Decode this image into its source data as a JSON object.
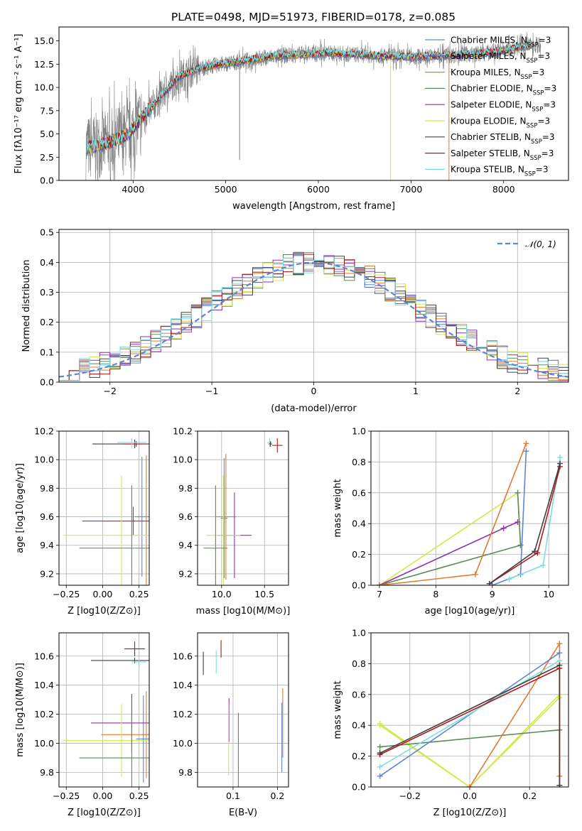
{
  "figure": {
    "title": "PLATE=0498, MJD=51973, FIBERID=0178, z=0.085"
  },
  "colors": {
    "Chabrier MILES": "#5d86d6",
    "Salpeter MILES": "#4f6fc4",
    "Kroupa MILES": "#e07b34",
    "Chabrier ELODIE": "#5a8a5a",
    "Salpeter ELODIE": "#8e30b0",
    "Kroupa ELODIE": "#d4e84a",
    "Chabrier STELIB": "#404040",
    "Salpeter STELIB": "#b01818",
    "Kroupa STELIB": "#7fdde0",
    "data": "#808080"
  },
  "chart_data": [
    {
      "id": "spectrum",
      "type": "line",
      "title": "PLATE=0498, MJD=51973, FIBERID=0178, z=0.085",
      "xlabel": "wavelength [Angstrom, rest frame]",
      "ylabel": "Flux [fλ10⁻¹⁷ erg cm⁻² s⁻¹ A⁻¹]",
      "xlim": [
        3200,
        8700
      ],
      "ylim": [
        0,
        16.5
      ],
      "xticks": [
        4000,
        5000,
        6000,
        7000,
        8000
      ],
      "yticks": [
        0.0,
        2.5,
        5.0,
        7.5,
        10.0,
        12.5,
        15.0
      ],
      "legend_position": "right",
      "legend": [
        "Chabrier MILES, N_SSP=3",
        "Salpeter MILES, N_SSP=3",
        "Kroupa MILES, N_SSP=3",
        "Chabrier ELODIE, N_SSP=3",
        "Salpeter ELODIE, N_SSP=3",
        "Kroupa ELODIE, N_SSP=3",
        "Chabrier STELIB, N_SSP=3",
        "Salpeter STELIB, N_SSP=3",
        "Kroupa STELIB, N_SSP=3"
      ],
      "continuum": {
        "x": [
          3500,
          3650,
          3800,
          3950,
          4100,
          4300,
          4500,
          4700,
          4900,
          5100,
          5300,
          5500,
          5700,
          5900,
          6100,
          6300,
          6500,
          6700,
          6900,
          7100,
          7300,
          7500,
          7700,
          7900,
          8100,
          8300
        ],
        "y": [
          3.5,
          3.8,
          4.3,
          5.0,
          6.8,
          9.0,
          11.2,
          12.0,
          12.4,
          12.7,
          13.0,
          13.3,
          13.5,
          13.6,
          13.7,
          13.6,
          13.5,
          13.4,
          13.3,
          13.3,
          13.4,
          13.5,
          13.6,
          13.8,
          14.2,
          14.6
        ]
      },
      "spikes": [
        {
          "x": 5150,
          "y_low": 2.2
        },
        {
          "x": 6780,
          "y_low": 0.0,
          "series": "Kroupa ELODIE"
        },
        {
          "x": 7410,
          "y_low": 0.0,
          "series": "Kroupa MILES"
        }
      ]
    },
    {
      "id": "residuals",
      "type": "line",
      "xlabel": "(data-model)/error",
      "ylabel": "Normed distribution",
      "xlim": [
        -2.5,
        2.5
      ],
      "ylim": [
        0,
        0.51
      ],
      "xticks": [
        -2,
        -1,
        0,
        1,
        2
      ],
      "yticks": [
        0.0,
        0.1,
        0.2,
        0.3,
        0.4,
        0.5
      ],
      "grid": true,
      "legend_position": "top-right",
      "gaussian_label": "𝒩(0, 1)",
      "bin_width": 0.1
    },
    {
      "id": "age-vs-Z",
      "type": "scatter",
      "xlabel": "Z [log10(Z/Z⊙)]",
      "ylabel": "age  [log10(age/yr)]",
      "xlim": [
        -0.3,
        0.32
      ],
      "ylim": [
        9.12,
        10.2
      ],
      "xticks": [
        -0.25,
        0.0,
        0.25
      ],
      "yticks": [
        9.2,
        9.4,
        9.6,
        9.8,
        10.0,
        10.2
      ],
      "grid": true,
      "points": [
        {
          "series": "Chabrier STELIB",
          "x": 0.23,
          "y": 10.11,
          "xerr": 0.3,
          "yerr": 0.02
        },
        {
          "series": "Salpeter STELIB",
          "x": 0.22,
          "y": 10.11,
          "xerr": 0.08,
          "yerr": 0.03
        },
        {
          "series": "Kroupa STELIB",
          "x": 0.2,
          "y": 10.12,
          "xerr": 0.1,
          "yerr": 0.03
        },
        {
          "series": "Chabrier MILES",
          "x": 0.27,
          "y": 9.6,
          "xerr": 0.05,
          "yerr": 0.42
        },
        {
          "series": "Kroupa MILES",
          "x": 0.3,
          "y": 9.57,
          "xerr": 0.3,
          "yerr": 0.46
        },
        {
          "series": "Salpeter ELODIE",
          "x": 0.21,
          "y": 9.57,
          "xerr": 0.35,
          "yerr": 0.1
        },
        {
          "series": "Kroupa ELODIE",
          "x": 0.13,
          "y": 9.47,
          "xerr": 0.4,
          "yerr": 0.42
        },
        {
          "series": "Chabrier ELODIE",
          "x": 0.2,
          "y": 9.38,
          "xerr": 0.36,
          "yerr": 0.44
        }
      ]
    },
    {
      "id": "age-vs-mass",
      "type": "scatter",
      "xlabel": "mass [log10(M/M⊙)]",
      "ylabel": "",
      "xlim": [
        9.72,
        10.78
      ],
      "ylim": [
        9.12,
        10.2
      ],
      "xticks": [
        10.0,
        10.5
      ],
      "yticks": [
        9.2,
        9.4,
        9.6,
        9.8,
        10.0,
        10.2
      ],
      "grid": true,
      "points": [
        {
          "series": "Salpeter STELIB",
          "x": 10.65,
          "y": 10.1,
          "xerr": 0.06,
          "yerr": 0.05
        },
        {
          "series": "Kroupa STELIB",
          "x": 10.56,
          "y": 10.12,
          "xerr": 0.03,
          "yerr": 0.03
        },
        {
          "series": "Chabrier STELIB",
          "x": 10.57,
          "y": 10.11,
          "xerr": 0.02,
          "yerr": 0.02
        },
        {
          "series": "Kroupa MILES",
          "x": 10.05,
          "y": 9.6,
          "xerr": 0.12,
          "yerr": 0.44
        },
        {
          "series": "Chabrier MILES",
          "x": 10.03,
          "y": 9.59,
          "xerr": 0.04,
          "yerr": 0.42
        },
        {
          "series": "Salpeter ELODIE",
          "x": 10.15,
          "y": 9.47,
          "xerr": 0.2,
          "yerr": 0.3
        },
        {
          "series": "Kroupa ELODIE",
          "x": 10.02,
          "y": 9.47,
          "xerr": 0.2,
          "yerr": 0.42
        },
        {
          "series": "Chabrier ELODIE",
          "x": 9.93,
          "y": 9.38,
          "xerr": 0.14,
          "yerr": 0.44
        }
      ]
    },
    {
      "id": "weight-vs-age",
      "type": "line",
      "xlabel": "age  [log10(age/yr)]",
      "ylabel": "mass weight",
      "xlim": [
        6.85,
        10.35
      ],
      "ylim": [
        0,
        1.0
      ],
      "xticks": [
        7,
        8,
        9,
        10
      ],
      "yticks": [
        0.0,
        0.2,
        0.4,
        0.6,
        0.8,
        1.0
      ],
      "grid": true,
      "series": [
        {
          "name": "Kroupa ELODIE",
          "x": [
            7.0,
            9.45,
            9.5
          ],
          "y": [
            0.0,
            0.6,
            0.26
          ]
        },
        {
          "name": "Salpeter ELODIE",
          "x": [
            7.0,
            9.2,
            9.45
          ],
          "y": [
            0.0,
            0.37,
            0.41
          ]
        },
        {
          "name": "Chabrier ELODIE",
          "x": [
            7.0,
            9.5,
            9.45
          ],
          "y": [
            0.0,
            0.26,
            0.6
          ]
        },
        {
          "name": "Kroupa MILES",
          "x": [
            7.0,
            8.7,
            9.6
          ],
          "y": [
            0.0,
            0.07,
            0.92
          ]
        },
        {
          "name": "Chabrier MILES",
          "x": [
            9.0,
            9.5,
            9.6
          ],
          "y": [
            0.0,
            0.07,
            0.87
          ]
        },
        {
          "name": "Kroupa STELIB",
          "x": [
            9.3,
            9.9,
            10.2
          ],
          "y": [
            0.04,
            0.13,
            0.83
          ]
        },
        {
          "name": "Salpeter STELIB",
          "x": [
            8.95,
            9.8,
            10.2
          ],
          "y": [
            0.01,
            0.21,
            0.77
          ]
        },
        {
          "name": "Chabrier STELIB",
          "x": [
            8.95,
            9.75,
            10.2
          ],
          "y": [
            0.01,
            0.22,
            0.79
          ]
        }
      ]
    },
    {
      "id": "mass-vs-Z",
      "type": "scatter",
      "xlabel": "Z [log10(Z/Z⊙)]",
      "ylabel": "mass [log10(M/M⊙)]",
      "xlim": [
        -0.3,
        0.32
      ],
      "ylim": [
        9.7,
        10.76
      ],
      "xticks": [
        -0.25,
        0.0,
        0.25
      ],
      "yticks": [
        9.8,
        10.0,
        10.2,
        10.4,
        10.6
      ],
      "grid": true,
      "points": [
        {
          "series": "Salpeter STELIB",
          "x": 0.22,
          "y": 10.65,
          "xerr": 0.07,
          "yerr": 0.05
        },
        {
          "series": "Chabrier STELIB",
          "x": 0.22,
          "y": 10.57,
          "xerr": 0.3,
          "yerr": 0.02
        },
        {
          "series": "Kroupa STELIB",
          "x": 0.25,
          "y": 10.56,
          "xerr": 0.05,
          "yerr": 0.04
        },
        {
          "series": "Kroupa MILES",
          "x": 0.3,
          "y": 10.06,
          "xerr": 0.31,
          "yerr": 0.3
        },
        {
          "series": "Chabrier MILES",
          "x": 0.28,
          "y": 10.03,
          "xerr": 0.05,
          "yerr": 0.3
        },
        {
          "series": "Salpeter ELODIE",
          "x": 0.2,
          "y": 10.14,
          "xerr": 0.28,
          "yerr": 0.2
        },
        {
          "series": "Kroupa ELODIE",
          "x": 0.13,
          "y": 10.02,
          "xerr": 0.4,
          "yerr": 0.25
        },
        {
          "series": "Chabrier ELODIE",
          "x": 0.2,
          "y": 9.9,
          "xerr": 0.36,
          "yerr": 0.3
        }
      ]
    },
    {
      "id": "mass-vs-ebv",
      "type": "scatter",
      "xlabel": "E(B-V)",
      "ylabel": "",
      "xlim": [
        0.02,
        0.225
      ],
      "ylim": [
        9.7,
        10.76
      ],
      "xticks": [
        0.1,
        0.2
      ],
      "yticks": [
        9.8,
        10.0,
        10.2,
        10.4,
        10.6
      ],
      "grid": true,
      "points": [
        {
          "series": "Chabrier STELIB",
          "x": 0.033,
          "y": 10.55,
          "yerr": 0.08
        },
        {
          "series": "Kroupa STELIB",
          "x": 0.062,
          "y": 10.56,
          "yerr": 0.08
        },
        {
          "series": "Salpeter STELIB",
          "x": 0.073,
          "y": 10.65,
          "yerr": 0.06
        },
        {
          "series": "Salpeter ELODIE",
          "x": 0.091,
          "y": 10.16,
          "yerr": 0.15
        },
        {
          "series": "Kroupa ELODIE",
          "x": 0.09,
          "y": 10.03,
          "yerr": 0.25
        },
        {
          "series": "Chabrier ELODIE",
          "x": 0.112,
          "y": 9.94,
          "yerr": 0.27
        },
        {
          "series": "Kroupa MILES",
          "x": 0.212,
          "y": 10.14,
          "yerr": 0.24
        },
        {
          "series": "Chabrier MILES",
          "x": 0.21,
          "y": 10.04,
          "yerr": 0.24
        }
      ]
    },
    {
      "id": "weight-vs-Z",
      "type": "line",
      "xlabel": "Z [log10(Z/Z⊙)]",
      "ylabel": "mass weight",
      "xlim": [
        -0.33,
        0.33
      ],
      "ylim": [
        0,
        1.0
      ],
      "xticks": [
        -0.2,
        0.0,
        0.2
      ],
      "yticks": [
        0.0,
        0.2,
        0.4,
        0.6,
        0.8,
        1.0
      ],
      "grid": true,
      "series": [
        {
          "name": "Kroupa ELODIE",
          "x": [
            -0.3,
            0.0,
            0.3
          ],
          "y": [
            0.41,
            0.0,
            0.6
          ]
        },
        {
          "name": "Kroupa ELODIE",
          "x": [
            -0.3,
            0.0,
            0.3
          ],
          "y": [
            0.4,
            0.0,
            0.58
          ]
        },
        {
          "name": "Chabrier ELODIE",
          "x": [
            -0.3,
            0.3
          ],
          "y": [
            0.26,
            0.37
          ]
        },
        {
          "name": "Kroupa MILES",
          "x": [
            0.0,
            0.3,
            0.3
          ],
          "y": [
            0.0,
            0.93,
            0.07
          ]
        },
        {
          "name": "Chabrier MILES",
          "x": [
            -0.3,
            0.3
          ],
          "y": [
            0.07,
            0.87
          ]
        },
        {
          "name": "Kroupa STELIB",
          "x": [
            -0.3,
            0.3
          ],
          "y": [
            0.13,
            0.82
          ]
        },
        {
          "name": "Salpeter STELIB",
          "x": [
            -0.3,
            0.3,
            0.3
          ],
          "y": [
            0.21,
            0.77,
            0.01
          ]
        },
        {
          "name": "Chabrier STELIB",
          "x": [
            -0.3,
            0.3,
            0.3
          ],
          "y": [
            0.22,
            0.79,
            0.01
          ]
        }
      ]
    }
  ]
}
